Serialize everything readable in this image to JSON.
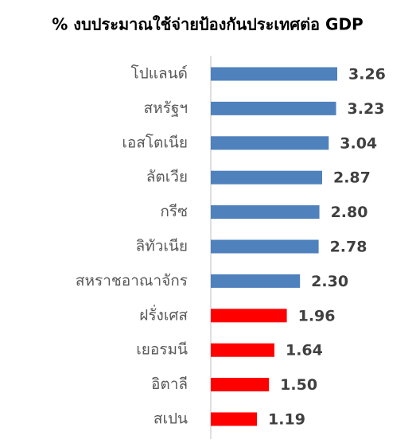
{
  "chart_data": {
    "type": "barh",
    "title": "% งบประมาณใช้จ่ายป้องกันประเทศต่อ GDP",
    "categories": [
      "โปแลนด์",
      "สหรัฐฯ",
      "เอสโตเนีย",
      "ลัตเวีย",
      "กรีซ",
      "ลิทัวเนีย",
      "สหราชอาณาจักร",
      "ฝรั่งเศส",
      "เยอรมนี",
      "อิตาลี",
      "สเปน"
    ],
    "values": [
      3.26,
      3.23,
      3.04,
      2.87,
      2.8,
      2.78,
      2.3,
      1.96,
      1.64,
      1.5,
      1.19
    ],
    "value_labels": [
      "3.26",
      "3.23",
      "3.04",
      "2.87",
      "2.80",
      "2.78",
      "2.30",
      "1.96",
      "1.64",
      "1.50",
      "1.19"
    ],
    "colors": [
      "#4f81bd",
      "#4f81bd",
      "#4f81bd",
      "#4f81bd",
      "#4f81bd",
      "#4f81bd",
      "#4f81bd",
      "#ff0000",
      "#ff0000",
      "#ff0000",
      "#ff0000"
    ]
  }
}
